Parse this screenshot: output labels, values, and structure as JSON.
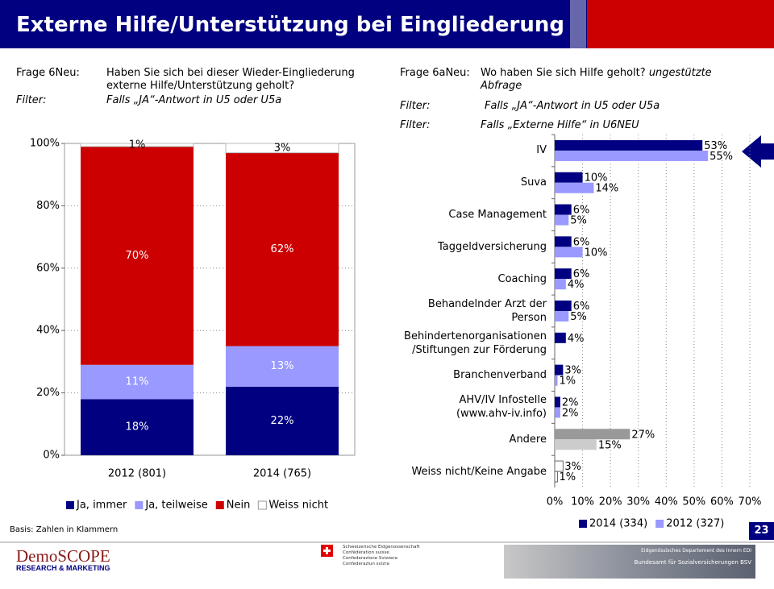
{
  "slide": {
    "title": "Externe Hilfe/Unterstützung bei Eingliederung",
    "left": {
      "question_label": "Frage 6Neu:",
      "question": "Haben Sie sich bei dieser Wieder-Eingliederung externe Hilfe/Unterstützung geholt?",
      "filter_label": "Filter:",
      "filter": "Falls „JA“-Antwort in U5 oder U5a"
    },
    "right": {
      "question_label": "Frage 6aNeu:",
      "question": "Wo haben Sie sich Hilfe geholt?",
      "question_note": "ungestützte Abfrage",
      "filter_label": "Filter:",
      "filter": "Falls „JA“-Antwort in U5 oder U5a",
      "filter2_label": "Filter:",
      "filter2": "Falls „Externe Hilfe“ in U6NEU"
    },
    "basis": "Basis: Zahlen in Klammern",
    "page_number": 23,
    "footer": {
      "brand": "DemoSCOPE",
      "brand_sub": "RESEARCH & MARKETING",
      "confederation": [
        "Schweizerische Eidgenossenschaft",
        "Confédération suisse",
        "Confederazione Svizzera",
        "Confederaziun svizra"
      ],
      "department": "Eidgenössisches Departement des Innern EDI",
      "office": "Bundesamt für Sozialversicherungen BSV"
    }
  },
  "chart_data": [
    {
      "type": "stacked-bar",
      "categories": [
        "2012 (801)",
        "2014 (765)"
      ],
      "series": [
        {
          "name": "Ja, immer",
          "color": "#000080",
          "values": [
            18,
            22
          ],
          "value_labels": [
            "18%",
            "22%"
          ]
        },
        {
          "name": "Ja, teilweise",
          "color": "#9999ff",
          "values": [
            11,
            13
          ],
          "value_labels": [
            "11%",
            "13%"
          ]
        },
        {
          "name": "Nein",
          "color": "#cc0000",
          "values": [
            70,
            62
          ],
          "value_labels": [
            "70%",
            "62%"
          ]
        },
        {
          "name": "Weiss nicht",
          "color": "#ffffff",
          "values": [
            1,
            3
          ],
          "value_labels": [
            "1%",
            "3%"
          ]
        }
      ],
      "ylim": [
        0,
        100
      ],
      "yticks": [
        {
          "value": 0,
          "label": "0%"
        },
        {
          "value": 20,
          "label": "20%"
        },
        {
          "value": 40,
          "label": "40%"
        },
        {
          "value": 60,
          "label": "60%"
        },
        {
          "value": 80,
          "label": "80%"
        },
        {
          "value": 100,
          "label": "100%"
        }
      ],
      "grid": true,
      "legend": "bottom"
    },
    {
      "type": "horizontal-grouped-bar",
      "categories": [
        "IV",
        "Suva",
        "Case Management",
        "Taggeldversicherung",
        "Coaching",
        "Behandelnder Arzt der\nPerson",
        "Behindertenorganisationen\n/Stiftungen zur Förderung",
        "Branchenverband",
        "AHV/IV Infostelle\n(www.ahv-iv.info)",
        "Andere",
        "Weiss nicht/Keine Angabe"
      ],
      "series": [
        {
          "name": "2014 (334)",
          "color": "#000080",
          "values": [
            53,
            10,
            6,
            6,
            6,
            6,
            4,
            3,
            2,
            27,
            3
          ],
          "value_labels": [
            "53%",
            "10%",
            "6%",
            "6%",
            "6%",
            "6%",
            "4%",
            "3%",
            "2%",
            "27%",
            "3%"
          ],
          "colors": [
            "#000080",
            "#000080",
            "#000080",
            "#000080",
            "#000080",
            "#000080",
            "#000080",
            "#000080",
            "#000080",
            "#999999",
            "#ffffff"
          ]
        },
        {
          "name": "2012 (327)",
          "color": "#9999ff",
          "values": [
            55,
            14,
            5,
            10,
            4,
            5,
            null,
            1,
            2,
            15,
            1
          ],
          "value_labels": [
            "55%",
            "14%",
            "5%",
            "10%",
            "4%",
            "5%",
            null,
            "1%",
            "2%",
            "15%",
            "1%"
          ],
          "colors": [
            "#9999ff",
            "#9999ff",
            "#9999ff",
            "#9999ff",
            "#9999ff",
            "#9999ff",
            "#9999ff",
            "#9999ff",
            "#9999ff",
            "#cccccc",
            "#ffffff"
          ]
        }
      ],
      "xlim": [
        0,
        70
      ],
      "xticks": [
        {
          "value": 0,
          "label": "0%"
        },
        {
          "value": 10,
          "label": "10%"
        },
        {
          "value": 20,
          "label": "20%"
        },
        {
          "value": 30,
          "label": "30%"
        },
        {
          "value": 40,
          "label": "40%"
        },
        {
          "value": 50,
          "label": "50%"
        },
        {
          "value": 60,
          "label": "60%"
        },
        {
          "value": 70,
          "label": "70%"
        }
      ],
      "grid": true,
      "legend": "bottom"
    }
  ]
}
